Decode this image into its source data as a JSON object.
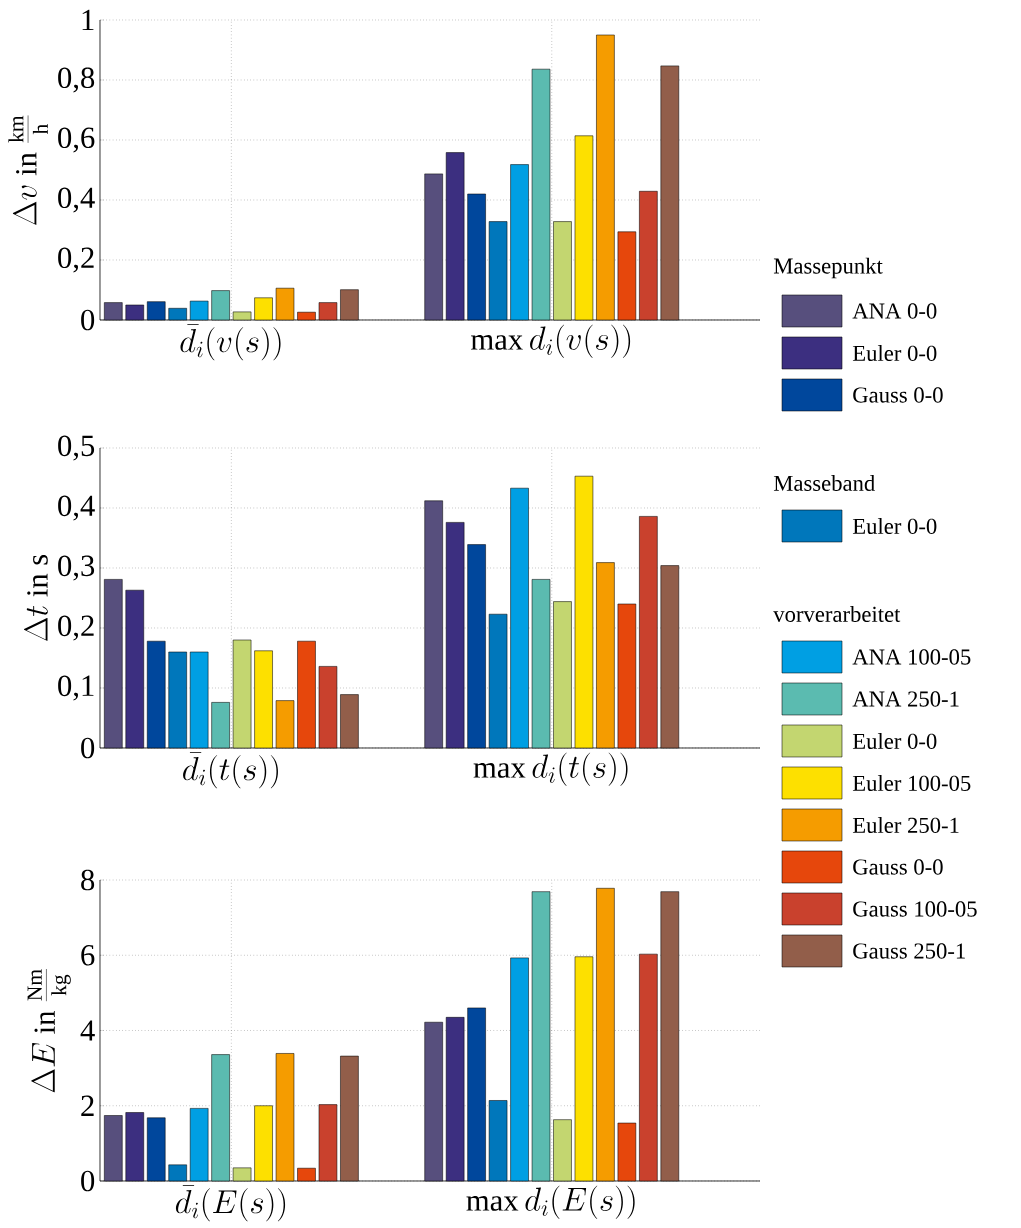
{
  "chart_data": [
    {
      "type": "bar",
      "categories": [
        "\\bar{d}_i(v(s))",
        "\\max d_i(v(s))"
      ],
      "ylabel": "\\Delta v\\ \\mathrm{in}\\ \\frac{\\mathrm{km}}{\\mathrm{h}}",
      "ylim": [
        0,
        1
      ],
      "yticks": [
        0,
        {
          "value": 0.2,
          "label": "0,2"
        },
        {
          "value": 0.4,
          "label": "0,4"
        },
        {
          "value": 0.6,
          "label": "0,6"
        },
        {
          "value": 0.8,
          "label": "0,8"
        },
        1
      ],
      "grid": true,
      "legend": "right",
      "annotations": [
        "Massepunkt",
        "Masseband",
        "vorverarbeitet"
      ],
      "series": [
        {
          "name": "ANA 0-0",
          "color": "#574f7d",
          "values": [
            0.058,
            0.487
          ]
        },
        {
          "name": "Euler 0-0",
          "color": "#3c2f80",
          "values": [
            0.05,
            0.558
          ]
        },
        {
          "name": "Gauss 0-0",
          "color": "#00479c",
          "values": [
            0.061,
            0.42
          ]
        },
        {
          "name": "Euler 0-0",
          "color": "#0077bb",
          "values": [
            0.039,
            0.328
          ]
        },
        {
          "name": "ANA 100-05",
          "color": "#009fe3",
          "values": [
            0.063,
            0.518
          ]
        },
        {
          "name": "ANA 250-1",
          "color": "#5bbbb0",
          "values": [
            0.098,
            0.836
          ]
        },
        {
          "name": "Euler 0-0",
          "color": "#c3d670",
          "values": [
            0.027,
            0.328
          ]
        },
        {
          "name": "Euler 100-05",
          "color": "#fde000",
          "values": [
            0.074,
            0.614
          ]
        },
        {
          "name": "Euler 250-1",
          "color": "#f59c00",
          "values": [
            0.106,
            0.95
          ]
        },
        {
          "name": "Gauss 0-0",
          "color": "#e6470c",
          "values": [
            0.026,
            0.294
          ]
        },
        {
          "name": "Gauss 100-05",
          "color": "#c9412d",
          "values": [
            0.058,
            0.429
          ]
        },
        {
          "name": "Gauss 250-1",
          "color": "#925e4a",
          "values": [
            0.101,
            0.847
          ]
        }
      ]
    },
    {
      "type": "bar",
      "categories": [
        "\\bar{d}_i(t(s))",
        "\\max d_i(t(s))"
      ],
      "ylabel": "\\Delta t\\ \\mathrm{in\\ s}",
      "ylim": [
        0,
        0.5
      ],
      "yticks": [
        0,
        {
          "value": 0.1,
          "label": "0,1"
        },
        {
          "value": 0.2,
          "label": "0,2"
        },
        {
          "value": 0.3,
          "label": "0,3"
        },
        {
          "value": 0.4,
          "label": "0,4"
        },
        {
          "value": 0.5,
          "label": "0,5"
        }
      ],
      "grid": true,
      "series": [
        {
          "color": "#574f7d",
          "values": [
            0.281,
            0.412
          ]
        },
        {
          "color": "#3c2f80",
          "values": [
            0.263,
            0.376
          ]
        },
        {
          "color": "#00479c",
          "values": [
            0.178,
            0.339
          ]
        },
        {
          "color": "#0077bb",
          "values": [
            0.16,
            0.223
          ]
        },
        {
          "color": "#009fe3",
          "values": [
            0.16,
            0.433
          ]
        },
        {
          "color": "#5bbbb0",
          "values": [
            0.076,
            0.281
          ]
        },
        {
          "color": "#c3d670",
          "values": [
            0.18,
            0.244
          ]
        },
        {
          "color": "#fde000",
          "values": [
            0.162,
            0.453
          ]
        },
        {
          "color": "#f59c00",
          "values": [
            0.079,
            0.309
          ]
        },
        {
          "color": "#e6470c",
          "values": [
            0.178,
            0.24
          ]
        },
        {
          "color": "#c9412d",
          "values": [
            0.136,
            0.386
          ]
        },
        {
          "color": "#925e4a",
          "values": [
            0.089,
            0.304
          ]
        }
      ]
    },
    {
      "type": "bar",
      "categories": [
        "\\bar{d}_i(E(s))",
        "\\max d_i(E(s))"
      ],
      "ylabel": "\\Delta E\\ \\mathrm{in}\\ \\frac{\\mathrm{Nm}}{\\mathrm{kg}}",
      "ylim": [
        0,
        8
      ],
      "yticks": [
        0,
        2,
        4,
        6,
        8
      ],
      "grid": true,
      "series": [
        {
          "color": "#574f7d",
          "values": [
            1.74,
            4.22
          ]
        },
        {
          "color": "#3c2f80",
          "values": [
            1.82,
            4.35
          ]
        },
        {
          "color": "#00479c",
          "values": [
            1.68,
            4.6
          ]
        },
        {
          "color": "#0077bb",
          "values": [
            0.43,
            2.14
          ]
        },
        {
          "color": "#009fe3",
          "values": [
            1.93,
            5.93
          ]
        },
        {
          "color": "#5bbbb0",
          "values": [
            3.36,
            7.69
          ]
        },
        {
          "color": "#c3d670",
          "values": [
            0.35,
            1.63
          ]
        },
        {
          "color": "#fde000",
          "values": [
            2.0,
            5.96
          ]
        },
        {
          "color": "#f59c00",
          "values": [
            3.39,
            7.78
          ]
        },
        {
          "color": "#e6470c",
          "values": [
            0.34,
            1.54
          ]
        },
        {
          "color": "#c9412d",
          "values": [
            2.03,
            6.03
          ]
        },
        {
          "color": "#925e4a",
          "values": [
            3.32,
            7.69
          ]
        }
      ]
    }
  ]
}
